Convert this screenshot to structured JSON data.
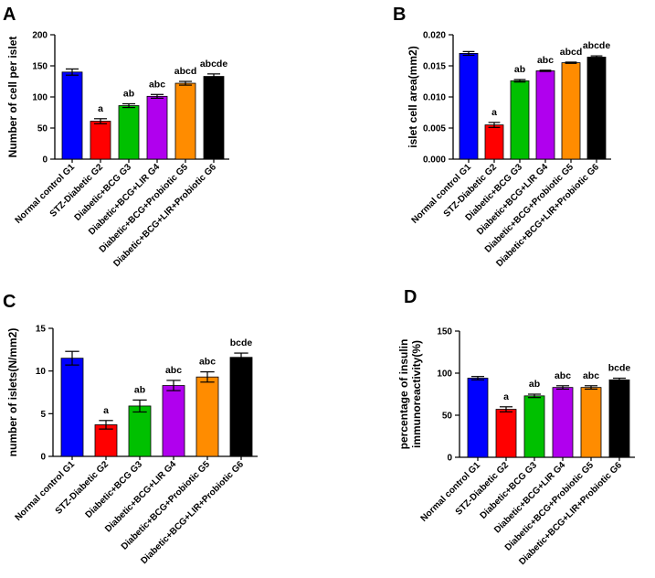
{
  "colors": [
    "#0000ff",
    "#ff0000",
    "#00c000",
    "#b000ee",
    "#ff8c00",
    "#000000"
  ],
  "chart_data": [
    {
      "type": "bar",
      "panel": "A",
      "ylabel": "Number of cell per islet",
      "ylim": [
        0,
        200
      ],
      "yticks": [
        "0",
        "50",
        "100",
        "150",
        "200"
      ],
      "categories": [
        "Normal control G1",
        "STZ-Diabetic G2",
        "Diabetic+BCG G3",
        "Diabetic+BCG+LIR G4",
        "Diabetic+BCG+Probiotic G5",
        "Diabetic+BCG+LIR+Probiotic G6"
      ],
      "values": [
        140,
        61,
        86,
        101,
        122,
        133
      ],
      "errors": [
        5,
        4,
        3,
        3,
        3,
        4
      ],
      "labels": [
        "",
        "a",
        "ab",
        "abc",
        "abcd",
        "abcde"
      ]
    },
    {
      "type": "bar",
      "panel": "B",
      "ylabel": "islet cell area(mm2)",
      "ylim": [
        0,
        0.02
      ],
      "yticks": [
        "0.000",
        "0.005",
        "0.010",
        "0.015",
        "0.020"
      ],
      "categories": [
        "Normal control G1",
        "STZ-Diabetic G2",
        "Diabetic+BCG G3",
        "Diabetic+BCG+LIR G4",
        "Diabetic+BCG+Probiotic G5",
        "Diabetic+BCG+LIR+Probiotic G6"
      ],
      "values": [
        0.017,
        0.0055,
        0.0126,
        0.0142,
        0.0155,
        0.0164
      ],
      "errors": [
        0.0003,
        0.0004,
        0.0002,
        0.0001,
        0.0001,
        0.0002
      ],
      "labels": [
        "",
        "a",
        "ab",
        "abc",
        "abcd",
        "abcde"
      ]
    },
    {
      "type": "bar",
      "panel": "C",
      "ylabel": "number of islets(N/mm2)",
      "ylim": [
        0,
        15
      ],
      "yticks": [
        "0",
        "5",
        "10",
        "15"
      ],
      "categories": [
        "Normal control G1",
        "STZ-Diabetic G2",
        "Diabetic+BCG G3",
        "Diabetic+BCG+LIR G4",
        "Diabetic+BCG+Probiotic G5",
        "Diabetic+BCG+LIR+Probiotic G6"
      ],
      "values": [
        11.5,
        3.7,
        5.9,
        8.3,
        9.3,
        11.6
      ],
      "errors": [
        0.8,
        0.5,
        0.7,
        0.6,
        0.6,
        0.5
      ],
      "labels": [
        "",
        "a",
        "ab",
        "abc",
        "abc",
        "bcde"
      ]
    },
    {
      "type": "bar",
      "panel": "D",
      "ylabel": "percentage of insulin\nimmunoreactivity(%)",
      "ylim": [
        0,
        150
      ],
      "yticks": [
        "0",
        "50",
        "100",
        "150"
      ],
      "categories": [
        "Normal control G1",
        "STZ-Diabetic G2",
        "Diabetic+BCG G3",
        "Diabetic+BCG+LIR G4",
        "Diabetic+BCG+Probiotic G5",
        "Diabetic+BCG+LIR+Probiotic G6"
      ],
      "values": [
        94,
        57,
        73,
        83,
        83,
        92
      ],
      "errors": [
        2,
        3,
        2,
        2,
        2,
        2
      ],
      "labels": [
        "",
        "a",
        "ab",
        "abc",
        "abc",
        "bcde"
      ]
    }
  ]
}
